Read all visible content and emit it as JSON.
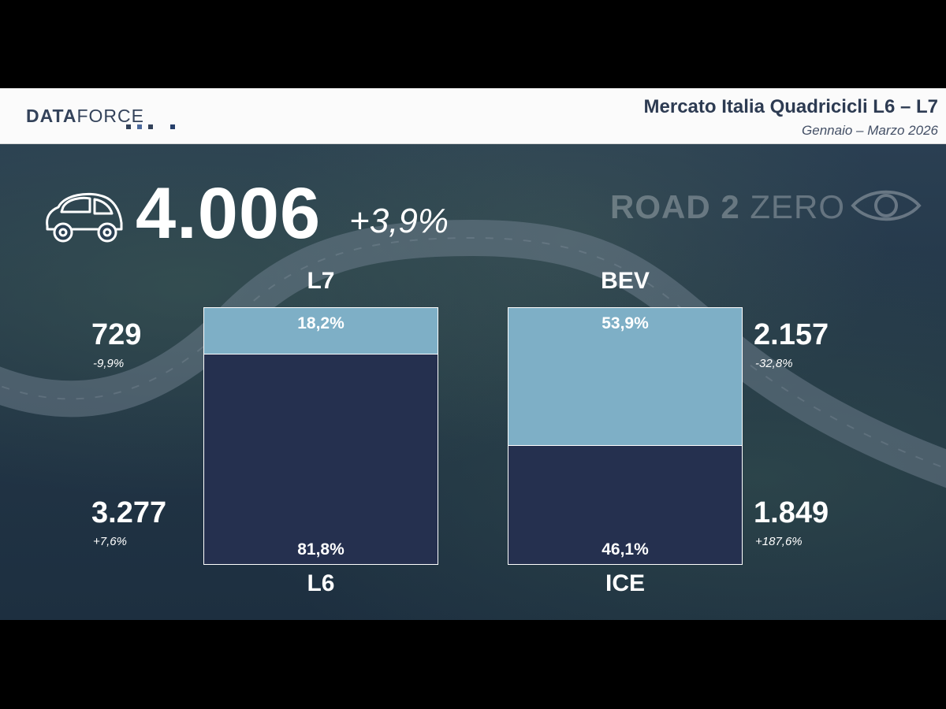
{
  "header": {
    "logo_bold": "DATA",
    "logo_light": "FORCE",
    "title": "Mercato Italia Quadricicli L6 – L7",
    "subtitle": "Gennaio – Marzo 2026"
  },
  "brand": {
    "part1": "ROAD 2 ",
    "part2": "ZERO",
    "icon": "eye-icon"
  },
  "summary": {
    "total": "4.006",
    "change": "+3,9%",
    "icon": "car-icon"
  },
  "colors": {
    "light_segment": "#7eafc6",
    "dark_segment": "#25304f",
    "header_bg": "#fbfbfb",
    "title": "#2d3b52"
  },
  "chart_data": [
    {
      "type": "bar",
      "stacked": "100%",
      "categories": [
        "L7",
        "L6"
      ],
      "values_percent": [
        18.2,
        81.8
      ],
      "labels": {
        "top": "L7",
        "bottom": "L6",
        "top_pct": "18,2%",
        "bottom_pct": "81,8%"
      },
      "volumes": {
        "top": "729",
        "top_change": "-9,9%",
        "bottom": "3.277",
        "bottom_change": "+7,6%"
      }
    },
    {
      "type": "bar",
      "stacked": "100%",
      "categories": [
        "BEV",
        "ICE"
      ],
      "values_percent": [
        53.9,
        46.1
      ],
      "labels": {
        "top": "BEV",
        "bottom": "ICE",
        "top_pct": "53,9%",
        "bottom_pct": "46,1%"
      },
      "volumes": {
        "top": "2.157",
        "top_change": "-32,8%",
        "bottom": "1.849",
        "bottom_change": "+187,6%"
      }
    }
  ]
}
